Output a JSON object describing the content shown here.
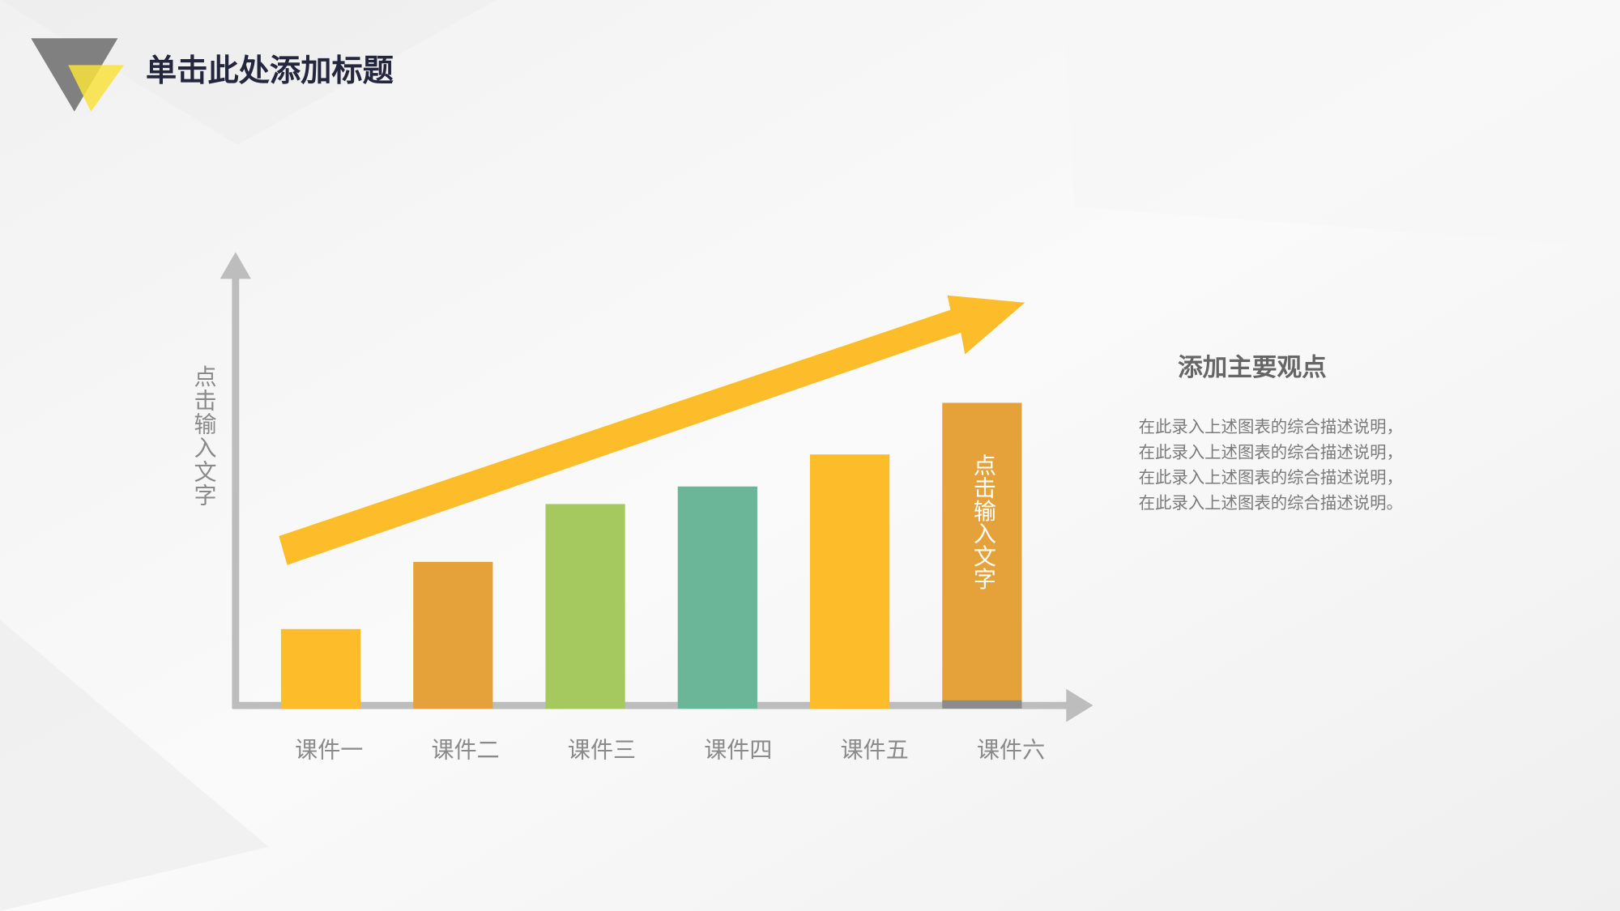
{
  "chart_data": {
    "type": "bar",
    "title": "单击此处添加标题",
    "y_label": "点击输入文字",
    "bar_annotation": "点击输入文字",
    "categories": [
      "课件一",
      "课件二",
      "课件三",
      "课件四",
      "课件五",
      "课件六"
    ],
    "values": [
      77,
      142,
      198,
      215,
      246,
      296
    ],
    "colors": [
      "#fdbd2a",
      "#e5a23a",
      "#a6c95f",
      "#6bb598",
      "#fdbd2a",
      "#e5a23a"
    ],
    "ylim": [
      0,
      440
    ]
  },
  "sidebar": {
    "heading": "添加主要观点",
    "lines": [
      "在此录入上述图表的综合描述说明，",
      "在此录入上述图表的综合描述说明，",
      "在此录入上述图表的综合描述说明，",
      "在此录入上述图表的综合描述说明。"
    ]
  }
}
